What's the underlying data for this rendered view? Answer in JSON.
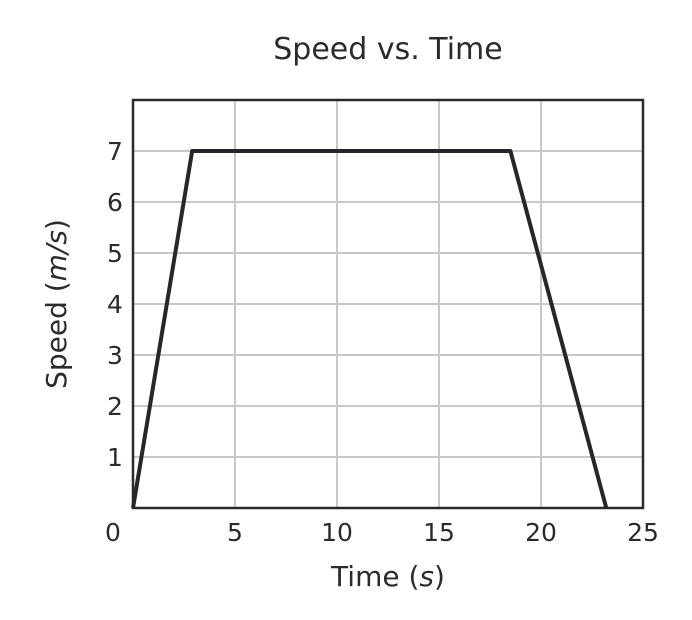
{
  "chart_data": {
    "type": "line",
    "title": "Speed vs. Time",
    "xlabel": {
      "prefix": "Time (",
      "unit": "s",
      "suffix": ")"
    },
    "ylabel": {
      "prefix": "Speed (",
      "unit": "m/s",
      "suffix": ")"
    },
    "xlim": [
      0,
      25
    ],
    "ylim": [
      0,
      8
    ],
    "x_ticks": [
      0,
      5,
      10,
      15,
      20,
      25
    ],
    "y_ticks": [
      1,
      2,
      3,
      4,
      5,
      6,
      7
    ],
    "grid": true,
    "legend": "none",
    "series": [
      {
        "color": "#26262b",
        "x": [
          0,
          2.9,
          18.5,
          23.2
        ],
        "y": [
          0,
          7,
          7,
          0
        ]
      }
    ]
  }
}
